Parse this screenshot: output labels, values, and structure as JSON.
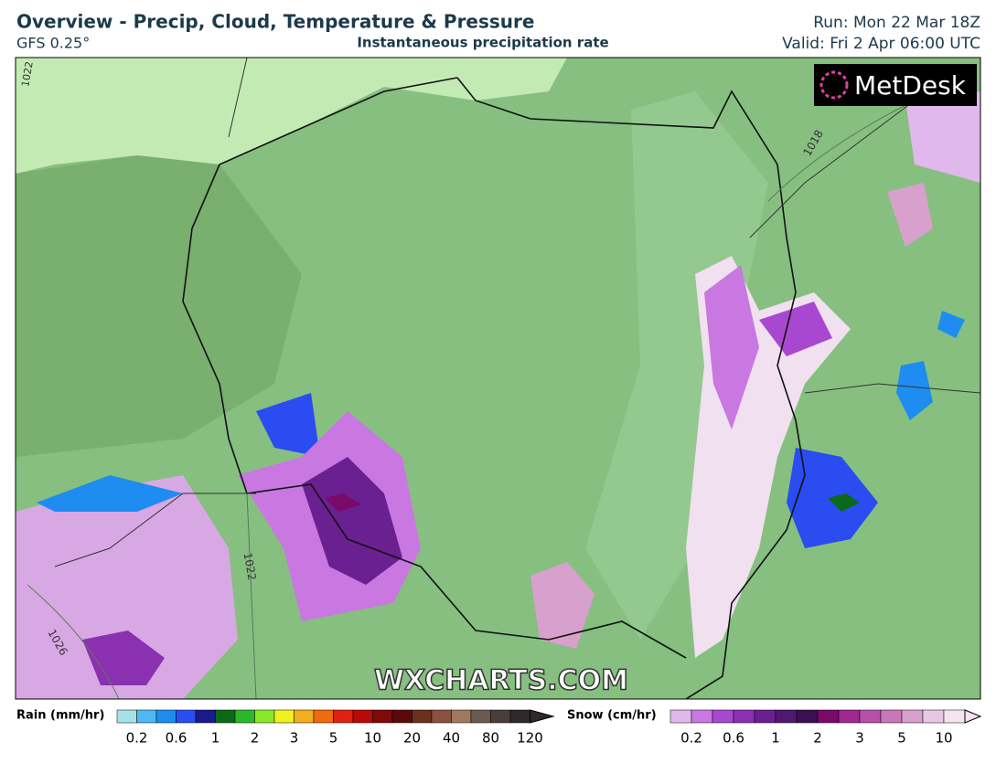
{
  "header": {
    "title": "Overview - Precip, Cloud, Temperature & Pressure",
    "model": "GFS 0.25°",
    "subtitle": "Instantaneous precipitation rate",
    "run": "Run: Mon 22 Mar 18Z",
    "valid": "Valid: Fri 2 Apr 06:00 UTC"
  },
  "map": {
    "logo": "MetDesk",
    "watermark": "WXCHARTS.COM",
    "isobar_labels": [
      "1022",
      "1026",
      "1018",
      "1022"
    ]
  },
  "legend": {
    "rain": {
      "label": "Rain (mm/hr)",
      "ticks": [
        "0.2",
        "0.6",
        "1",
        "2",
        "3",
        "5",
        "10",
        "20",
        "40",
        "80",
        "120"
      ],
      "colors": [
        "#a8e0ea",
        "#4fb8f0",
        "#1e8cf0",
        "#2a4cf0",
        "#1a1a8a",
        "#0a6a1a",
        "#2ab82a",
        "#8ae82a",
        "#f0f020",
        "#f0b020",
        "#f06a10",
        "#e02010",
        "#b80a0a",
        "#800a0a",
        "#5a0a0a",
        "#6a3020",
        "#8a5040",
        "#a07860",
        "#6a5a50",
        "#4a3e3a",
        "#2e2a2a"
      ]
    },
    "snow": {
      "label": "Snow (cm/hr)",
      "ticks": [
        "0.2",
        "0.6",
        "1",
        "2",
        "3",
        "5",
        "10"
      ],
      "colors": [
        "#e0b8ec",
        "#c878e0",
        "#a848d0",
        "#8a30b0",
        "#6a2090",
        "#501870",
        "#3a1050",
        "#7a0a6a",
        "#a02890",
        "#b850a8",
        "#c878b8",
        "#d8a0cc",
        "#e8c8e0",
        "#f4e4f0"
      ]
    }
  }
}
